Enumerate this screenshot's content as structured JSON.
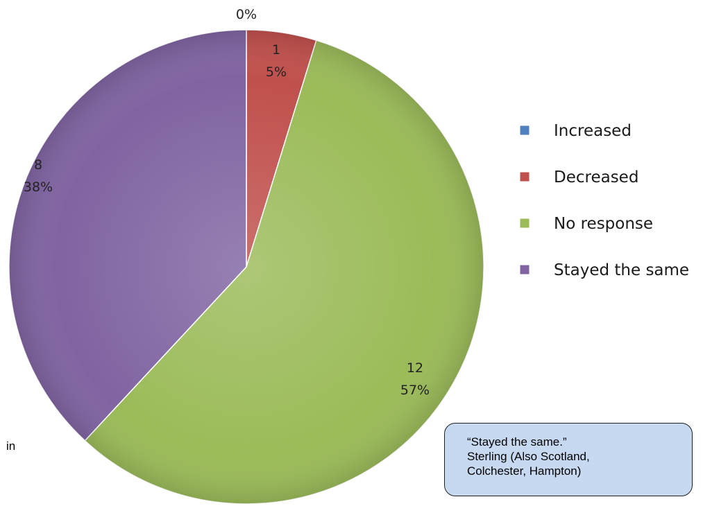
{
  "chart_data": {
    "type": "pie",
    "title": "",
    "slices": [
      {
        "label": "Increased",
        "value": 0,
        "percent_label": "0%",
        "color": "#4f81bd"
      },
      {
        "label": "Decreased",
        "value": 1,
        "percent_label": "5%",
        "color": "#c0504d"
      },
      {
        "label": "No response",
        "value": 12,
        "percent_label": "57%",
        "color": "#9bbb59"
      },
      {
        "label": "Stayed the same",
        "value": 8,
        "percent_label": "38%",
        "color": "#8064a2"
      }
    ],
    "legend_position": "right"
  },
  "stray_text": "in",
  "callout": {
    "lines": [
      "“Stayed the same.”",
      "Sterling (Also Scotland,",
      "Colchester, Hampton)"
    ]
  }
}
